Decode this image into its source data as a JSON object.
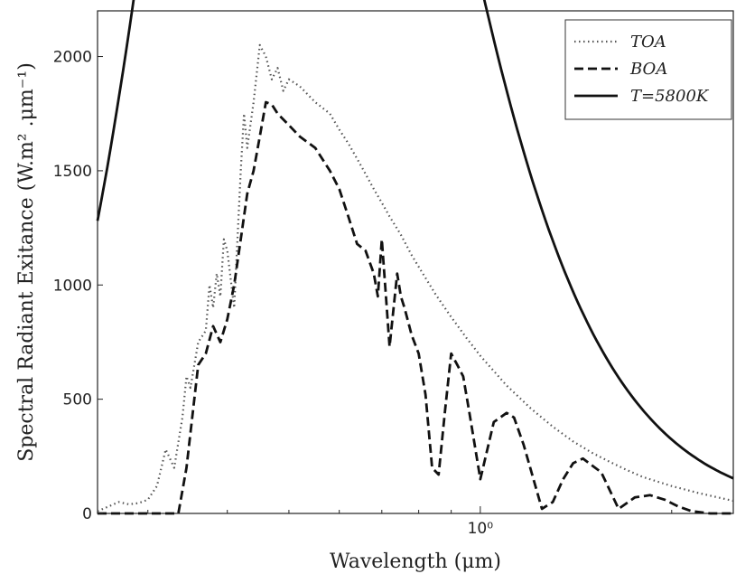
{
  "chart_data": {
    "type": "line",
    "xlabel": "Wavelength (μm)",
    "ylabel": "Spectral Radiant Exitance (W.m² .μm⁻¹)",
    "xscale": "log",
    "xlim": [
      0.25,
      2.5
    ],
    "ylim": [
      0,
      2200
    ],
    "grid": false,
    "legend_position": "top-right",
    "x_ticks": [
      {
        "value": 1.0,
        "label": "10⁰"
      }
    ],
    "y_ticks": [
      {
        "value": 0,
        "label": "0"
      },
      {
        "value": 500,
        "label": "500"
      },
      {
        "value": 1000,
        "label": "1000"
      },
      {
        "value": 1500,
        "label": "1500"
      },
      {
        "value": 2000,
        "label": "2000"
      }
    ],
    "series": [
      {
        "name": "TOA",
        "style": "dotted",
        "color": "#555555",
        "x": [
          0.25,
          0.26,
          0.27,
          0.28,
          0.29,
          0.3,
          0.31,
          0.32,
          0.33,
          0.34,
          0.345,
          0.35,
          0.36,
          0.37,
          0.375,
          0.38,
          0.385,
          0.39,
          0.395,
          0.4,
          0.41,
          0.42,
          0.425,
          0.43,
          0.44,
          0.45,
          0.46,
          0.47,
          0.48,
          0.49,
          0.5,
          0.52,
          0.55,
          0.58,
          0.6,
          0.62,
          0.65,
          0.68,
          0.7,
          0.72,
          0.75,
          0.78,
          0.8,
          0.85,
          0.9,
          0.95,
          1.0,
          1.1,
          1.2,
          1.3,
          1.4,
          1.5,
          1.6,
          1.7,
          1.8,
          2.0,
          2.2,
          2.5
        ],
        "y": [
          10,
          30,
          50,
          40,
          45,
          60,
          120,
          280,
          200,
          420,
          600,
          550,
          750,
          800,
          1000,
          900,
          1050,
          950,
          1200,
          1150,
          900,
          1500,
          1750,
          1600,
          1800,
          2050,
          2000,
          1900,
          1950,
          1850,
          1900,
          1870,
          1800,
          1750,
          1680,
          1620,
          1520,
          1420,
          1360,
          1300,
          1220,
          1130,
          1080,
          960,
          860,
          770,
          690,
          560,
          460,
          380,
          315,
          265,
          225,
          190,
          160,
          120,
          90,
          55
        ]
      },
      {
        "name": "BOA",
        "style": "dashed",
        "color": "#111111",
        "x": [
          0.25,
          0.28,
          0.3,
          0.32,
          0.335,
          0.345,
          0.36,
          0.37,
          0.38,
          0.39,
          0.4,
          0.41,
          0.42,
          0.43,
          0.44,
          0.45,
          0.46,
          0.47,
          0.48,
          0.5,
          0.52,
          0.55,
          0.58,
          0.6,
          0.62,
          0.64,
          0.66,
          0.68,
          0.69,
          0.7,
          0.72,
          0.74,
          0.75,
          0.76,
          0.78,
          0.8,
          0.82,
          0.84,
          0.86,
          0.88,
          0.9,
          0.92,
          0.94,
          0.96,
          1.0,
          1.05,
          1.1,
          1.13,
          1.17,
          1.25,
          1.3,
          1.35,
          1.4,
          1.45,
          1.55,
          1.65,
          1.75,
          1.85,
          1.95,
          2.05,
          2.15,
          2.3,
          2.5
        ],
        "y": [
          0,
          0,
          0,
          0,
          0,
          200,
          650,
          700,
          820,
          750,
          850,
          1000,
          1200,
          1400,
          1500,
          1650,
          1800,
          1790,
          1750,
          1700,
          1650,
          1600,
          1500,
          1420,
          1300,
          1180,
          1150,
          1050,
          950,
          1200,
          730,
          1050,
          950,
          900,
          780,
          700,
          520,
          200,
          170,
          450,
          700,
          650,
          600,
          450,
          150,
          400,
          440,
          420,
          300,
          20,
          50,
          150,
          220,
          240,
          180,
          20,
          70,
          80,
          60,
          30,
          10,
          0,
          0
        ]
      },
      {
        "name": "T=5800K",
        "style": "solid",
        "color": "#111111",
        "function": "planck",
        "temperature": 5800
      }
    ]
  }
}
